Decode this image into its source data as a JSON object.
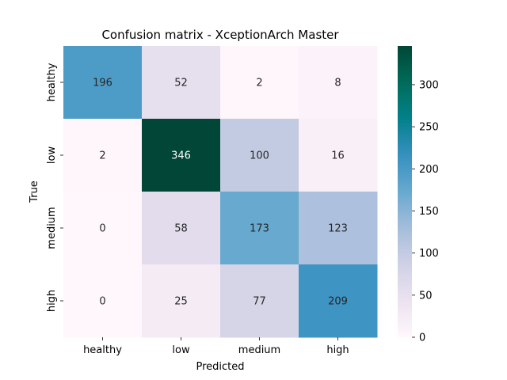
{
  "chart_data": {
    "type": "heatmap",
    "title": "Confusion matrix - XceptionArch Master",
    "xlabel": "Predicted",
    "ylabel": "True",
    "x_categories": [
      "healthy",
      "low",
      "medium",
      "high"
    ],
    "y_categories": [
      "healthy",
      "low",
      "medium",
      "high"
    ],
    "values": [
      [
        196,
        52,
        2,
        8
      ],
      [
        2,
        346,
        100,
        16
      ],
      [
        0,
        58,
        173,
        123
      ],
      [
        0,
        25,
        77,
        209
      ]
    ],
    "colormap": "PuBuGn",
    "vmin": 0,
    "vmax": 346,
    "colorbar_ticks": [
      0,
      50,
      100,
      150,
      200,
      250,
      300
    ]
  }
}
